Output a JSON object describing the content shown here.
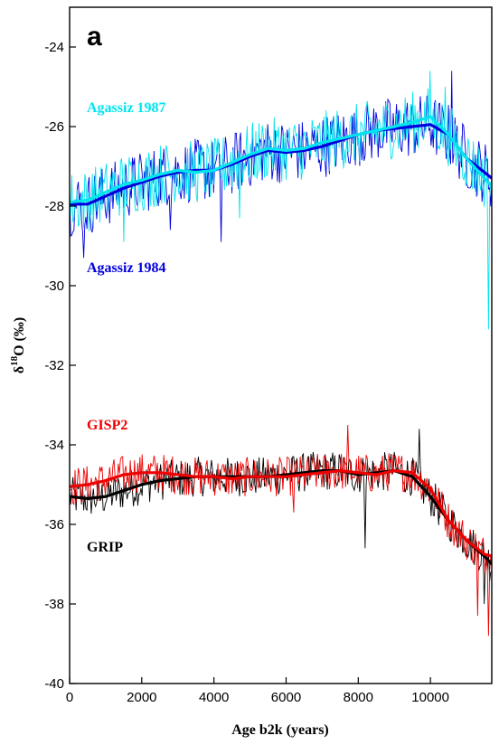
{
  "chart_data": {
    "type": "line",
    "panel_label": "a",
    "xlabel": "Age b2k (years)",
    "ylabel": {
      "prefix": "δ",
      "sup": "18",
      "rest": "O (‰)"
    },
    "xlim": [
      0,
      11700
    ],
    "ylim": [
      -40,
      -23
    ],
    "y_inverted": true,
    "x_ticks": [
      0,
      2000,
      4000,
      6000,
      8000,
      10000
    ],
    "y_ticks": [
      -24,
      -26,
      -28,
      -30,
      -32,
      -34,
      -36,
      -38,
      -40
    ],
    "grid": false,
    "legend": "in-plot labels",
    "series": [
      {
        "name": "Agassiz 1987",
        "color": "#00e5ee",
        "smooth_x": [
          0,
          500,
          1000,
          1500,
          2000,
          2500,
          3000,
          3500,
          4000,
          4500,
          5000,
          5500,
          6000,
          6500,
          7000,
          7500,
          8000,
          8500,
          9000,
          9500,
          10000,
          10500,
          11000,
          11500,
          11700
        ],
        "smooth_y": [
          -27.9,
          -27.85,
          -27.65,
          -27.45,
          -27.35,
          -27.2,
          -27.1,
          -27.15,
          -27.1,
          -26.9,
          -26.7,
          -26.55,
          -26.6,
          -26.55,
          -26.4,
          -26.3,
          -26.2,
          -26.1,
          -26.0,
          -25.9,
          -25.75,
          -26.2,
          -26.8,
          -27.3,
          -27.5
        ]
      },
      {
        "name": "Agassiz 1984",
        "color": "#0000dd",
        "smooth_x": [
          0,
          500,
          1000,
          1500,
          2000,
          2500,
          3000,
          3500,
          4000,
          4500,
          5000,
          5500,
          6000,
          6500,
          7000,
          7500,
          8000,
          8500,
          9000,
          9500,
          10000,
          10500,
          11000,
          11500,
          11700
        ],
        "smooth_y": [
          -27.95,
          -27.95,
          -27.75,
          -27.55,
          -27.4,
          -27.25,
          -27.15,
          -27.1,
          -27.1,
          -26.95,
          -26.75,
          -26.6,
          -26.65,
          -26.6,
          -26.5,
          -26.35,
          -26.2,
          -26.1,
          -26.05,
          -26.0,
          -25.95,
          -26.2,
          -26.8,
          -27.15,
          -27.3
        ]
      },
      {
        "name": "GISP2",
        "color": "#ee0000",
        "smooth_x": [
          0,
          500,
          1000,
          1500,
          2000,
          2500,
          3000,
          3500,
          4000,
          4500,
          5000,
          5500,
          6000,
          6500,
          7000,
          7500,
          8000,
          8500,
          9000,
          9500,
          10000,
          10500,
          11000,
          11500,
          11700
        ],
        "smooth_y": [
          -35.05,
          -35.0,
          -34.9,
          -34.75,
          -34.7,
          -34.7,
          -34.75,
          -34.8,
          -34.8,
          -34.85,
          -34.8,
          -34.8,
          -34.8,
          -34.75,
          -34.7,
          -34.65,
          -34.7,
          -34.75,
          -34.65,
          -34.7,
          -35.1,
          -35.9,
          -36.4,
          -36.75,
          -36.8
        ]
      },
      {
        "name": "GRIP",
        "color": "#000000",
        "smooth_x": [
          0,
          500,
          1000,
          1500,
          2000,
          2500,
          3000,
          3500,
          4000,
          4500,
          5000,
          5500,
          6000,
          6500,
          7000,
          7500,
          8000,
          8500,
          9000,
          9500,
          10000,
          10500,
          11000,
          11500,
          11700
        ],
        "smooth_y": [
          -35.3,
          -35.35,
          -35.3,
          -35.15,
          -35.0,
          -34.9,
          -34.85,
          -34.8,
          -34.8,
          -34.8,
          -34.8,
          -34.8,
          -34.75,
          -34.7,
          -34.65,
          -34.65,
          -34.75,
          -34.7,
          -34.65,
          -34.8,
          -35.3,
          -35.9,
          -36.4,
          -36.8,
          -37.0
        ]
      }
    ],
    "raw_noise": [
      {
        "amp": 0.8,
        "spikes": [
          [
            1500,
            -28.9
          ],
          [
            4700,
            -28.3
          ],
          [
            10000,
            -24.6
          ],
          [
            10400,
            -25.0
          ],
          [
            11600,
            -31.1
          ]
        ]
      },
      {
        "amp": 0.8,
        "spikes": [
          [
            400,
            -29.3
          ],
          [
            2800,
            -28.6
          ],
          [
            4200,
            -28.9
          ],
          [
            10600,
            -24.6
          ]
        ]
      },
      {
        "amp": 0.5,
        "spikes": [
          [
            6200,
            -35.7
          ],
          [
            7700,
            -33.5
          ],
          [
            11300,
            -38.3
          ],
          [
            11600,
            -38.8
          ]
        ]
      },
      {
        "amp": 0.5,
        "spikes": [
          [
            8200,
            -36.6
          ],
          [
            9700,
            -33.6
          ],
          [
            11500,
            -38.0
          ]
        ]
      }
    ]
  }
}
